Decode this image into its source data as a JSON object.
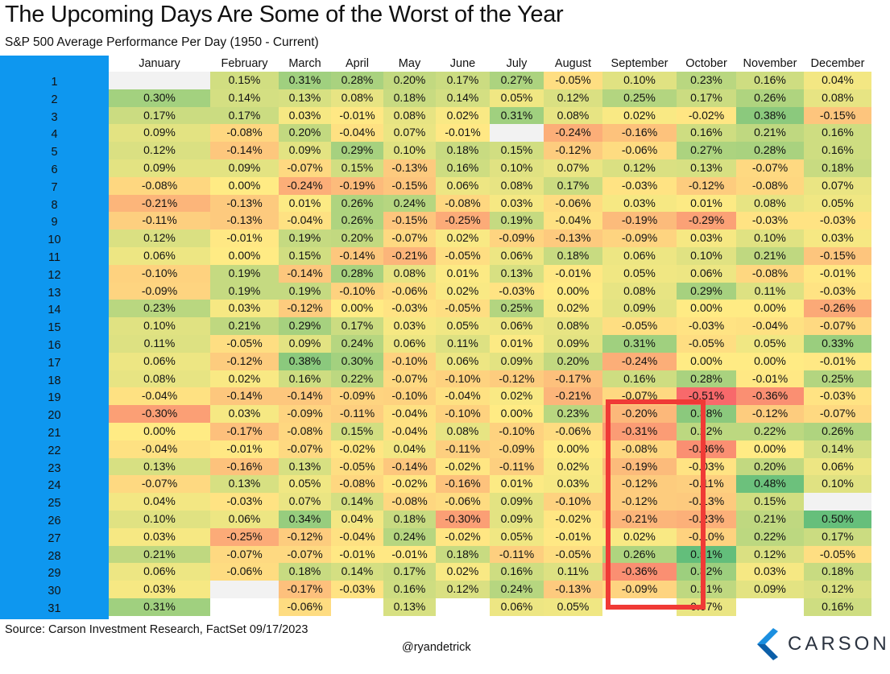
{
  "title": "The Upcoming Days Are Some of the Worst of the Year",
  "subtitle": "S&P 500 Average Performance Per Day (1950 - Current)",
  "source": "Source: Carson Investment Research, FactSet 09/17/2023",
  "handle": "@ryandetrick",
  "logo": {
    "text": "CARSON",
    "icon": "carson-chevron-logo",
    "color": "#1b8fe0"
  },
  "colors": {
    "sidebar": "#0e97ef",
    "highlight_box": "#f03a36",
    "scale_negative": "#f8696b",
    "scale_mid": "#ffeb84",
    "scale_positive": "#63be7b",
    "blank_cell": "#f2f2f2"
  },
  "chart_data": {
    "type": "heatmap",
    "title": "The Upcoming Days Are Some of the Worst of the Year",
    "subtitle": "S&P 500 Average Performance Per Day (1950 - Current)",
    "columns": [
      "January",
      "February",
      "March",
      "April",
      "May",
      "June",
      "July",
      "August",
      "September",
      "October",
      "November",
      "December"
    ],
    "rows": [
      "1",
      "2",
      "3",
      "4",
      "5",
      "6",
      "7",
      "8",
      "9",
      "10",
      "11",
      "12",
      "13",
      "14",
      "15",
      "16",
      "17",
      "18",
      "19",
      "20",
      "21",
      "22",
      "23",
      "24",
      "25",
      "26",
      "27",
      "28",
      "29",
      "30",
      "31"
    ],
    "values": [
      [
        "",
        "0.15%",
        "0.31%",
        "0.28%",
        "0.20%",
        "0.17%",
        "0.27%",
        "-0.05%",
        "0.10%",
        "0.23%",
        "0.16%",
        "0.04%"
      ],
      [
        "0.30%",
        "0.14%",
        "0.13%",
        "0.08%",
        "0.18%",
        "0.14%",
        "0.05%",
        "0.12%",
        "0.25%",
        "0.17%",
        "0.26%",
        "0.08%"
      ],
      [
        "0.17%",
        "0.17%",
        "0.03%",
        "-0.01%",
        "0.08%",
        "0.02%",
        "0.31%",
        "0.08%",
        "0.02%",
        "-0.02%",
        "0.38%",
        "-0.15%"
      ],
      [
        "0.09%",
        "-0.08%",
        "0.20%",
        "-0.04%",
        "0.07%",
        "-0.01%",
        "",
        "-0.24%",
        "-0.16%",
        "0.16%",
        "0.21%",
        "0.16%"
      ],
      [
        "0.12%",
        "-0.14%",
        "0.09%",
        "0.29%",
        "0.10%",
        "0.18%",
        "0.15%",
        "-0.12%",
        "-0.06%",
        "0.27%",
        "0.28%",
        "0.16%"
      ],
      [
        "0.09%",
        "0.09%",
        "-0.07%",
        "0.15%",
        "-0.13%",
        "0.16%",
        "0.10%",
        "0.07%",
        "0.12%",
        "0.13%",
        "-0.07%",
        "0.18%"
      ],
      [
        "-0.08%",
        "0.00%",
        "-0.24%",
        "-0.19%",
        "-0.15%",
        "0.06%",
        "0.08%",
        "0.17%",
        "-0.03%",
        "-0.12%",
        "-0.08%",
        "0.07%"
      ],
      [
        "-0.21%",
        "-0.13%",
        "0.01%",
        "0.26%",
        "0.24%",
        "-0.08%",
        "0.03%",
        "-0.06%",
        "0.03%",
        "0.01%",
        "0.08%",
        "0.05%"
      ],
      [
        "-0.11%",
        "-0.13%",
        "-0.04%",
        "0.26%",
        "-0.15%",
        "-0.25%",
        "0.19%",
        "-0.04%",
        "-0.19%",
        "-0.29%",
        "-0.03%",
        "-0.03%"
      ],
      [
        "0.12%",
        "-0.01%",
        "0.19%",
        "0.20%",
        "-0.07%",
        "0.02%",
        "-0.09%",
        "-0.13%",
        "-0.09%",
        "0.03%",
        "0.10%",
        "0.03%"
      ],
      [
        "0.06%",
        "0.00%",
        "0.15%",
        "-0.14%",
        "-0.21%",
        "-0.05%",
        "0.06%",
        "0.18%",
        "0.06%",
        "0.10%",
        "0.21%",
        "-0.15%"
      ],
      [
        "-0.10%",
        "0.19%",
        "-0.14%",
        "0.28%",
        "0.08%",
        "0.01%",
        "0.13%",
        "-0.01%",
        "0.05%",
        "0.06%",
        "-0.08%",
        "-0.01%"
      ],
      [
        "-0.09%",
        "0.19%",
        "0.19%",
        "-0.10%",
        "-0.06%",
        "0.02%",
        "-0.03%",
        "0.00%",
        "0.08%",
        "0.29%",
        "0.11%",
        "-0.03%"
      ],
      [
        "0.23%",
        "0.03%",
        "-0.12%",
        "0.00%",
        "-0.03%",
        "-0.05%",
        "0.25%",
        "0.02%",
        "0.09%",
        "0.00%",
        "0.00%",
        "-0.26%"
      ],
      [
        "0.10%",
        "0.21%",
        "0.29%",
        "0.17%",
        "0.03%",
        "0.05%",
        "0.06%",
        "0.08%",
        "-0.05%",
        "-0.03%",
        "-0.04%",
        "-0.07%"
      ],
      [
        "0.11%",
        "-0.05%",
        "0.09%",
        "0.24%",
        "0.06%",
        "0.11%",
        "0.01%",
        "0.09%",
        "0.31%",
        "-0.05%",
        "0.05%",
        "0.33%"
      ],
      [
        "0.06%",
        "-0.12%",
        "0.38%",
        "0.30%",
        "-0.10%",
        "0.06%",
        "0.09%",
        "0.20%",
        "-0.24%",
        "0.00%",
        "0.00%",
        "-0.01%"
      ],
      [
        "0.08%",
        "0.02%",
        "0.16%",
        "0.22%",
        "-0.07%",
        "-0.10%",
        "-0.12%",
        "-0.17%",
        "0.16%",
        "0.28%",
        "-0.01%",
        "0.25%"
      ],
      [
        "-0.04%",
        "-0.14%",
        "-0.14%",
        "-0.09%",
        "-0.10%",
        "-0.04%",
        "0.02%",
        "-0.21%",
        "-0.07%",
        "-0.51%",
        "-0.36%",
        "-0.03%"
      ],
      [
        "-0.30%",
        "0.03%",
        "-0.09%",
        "-0.11%",
        "-0.04%",
        "-0.10%",
        "0.00%",
        "0.23%",
        "-0.20%",
        "0.38%",
        "-0.12%",
        "-0.07%"
      ],
      [
        "0.00%",
        "-0.17%",
        "-0.08%",
        "0.15%",
        "-0.04%",
        "0.08%",
        "-0.10%",
        "-0.06%",
        "-0.31%",
        "0.22%",
        "0.22%",
        "0.26%"
      ],
      [
        "-0.04%",
        "-0.01%",
        "-0.07%",
        "-0.02%",
        "0.04%",
        "-0.11%",
        "-0.09%",
        "0.00%",
        "-0.08%",
        "-0.36%",
        "0.00%",
        "0.14%"
      ],
      [
        "0.13%",
        "-0.16%",
        "0.13%",
        "-0.05%",
        "-0.14%",
        "-0.02%",
        "-0.11%",
        "0.02%",
        "-0.19%",
        "-0.03%",
        "0.20%",
        "0.06%"
      ],
      [
        "-0.07%",
        "0.13%",
        "0.05%",
        "-0.08%",
        "-0.02%",
        "-0.16%",
        "0.01%",
        "0.03%",
        "-0.12%",
        "-0.11%",
        "0.48%",
        "0.10%"
      ],
      [
        "0.04%",
        "-0.03%",
        "0.07%",
        "0.14%",
        "-0.08%",
        "-0.06%",
        "0.09%",
        "-0.10%",
        "-0.12%",
        "-0.13%",
        "0.15%",
        ""
      ],
      [
        "0.10%",
        "0.06%",
        "0.34%",
        "0.04%",
        "0.18%",
        "-0.30%",
        "0.09%",
        "-0.02%",
        "-0.21%",
        "-0.23%",
        "0.21%",
        "0.50%"
      ],
      [
        "0.03%",
        "-0.25%",
        "-0.12%",
        "-0.04%",
        "0.24%",
        "-0.02%",
        "0.05%",
        "-0.01%",
        "0.02%",
        "-0.10%",
        "0.22%",
        "0.17%"
      ],
      [
        "0.21%",
        "-0.07%",
        "-0.07%",
        "-0.01%",
        "-0.01%",
        "0.18%",
        "-0.11%",
        "-0.05%",
        "0.26%",
        "0.51%",
        "0.12%",
        "-0.05%"
      ],
      [
        "0.06%",
        "-0.06%",
        "0.18%",
        "0.14%",
        "0.17%",
        "0.02%",
        "0.16%",
        "0.11%",
        "-0.36%",
        "0.32%",
        "0.03%",
        "0.18%"
      ],
      [
        "0.03%",
        "",
        "-0.17%",
        "-0.03%",
        "0.16%",
        "0.12%",
        "0.24%",
        "-0.13%",
        "-0.09%",
        "0.21%",
        "0.09%",
        "0.12%"
      ],
      [
        "0.31%",
        "",
        "-0.06%",
        "",
        "0.13%",
        "",
        "0.06%",
        "0.05%",
        "",
        "0.07%",
        "",
        "0.16%"
      ]
    ],
    "highlight": {
      "column": "September",
      "from_row": "20",
      "to_row": "30"
    },
    "color_scale": {
      "min": -0.51,
      "mid": 0,
      "max": 0.51
    }
  }
}
